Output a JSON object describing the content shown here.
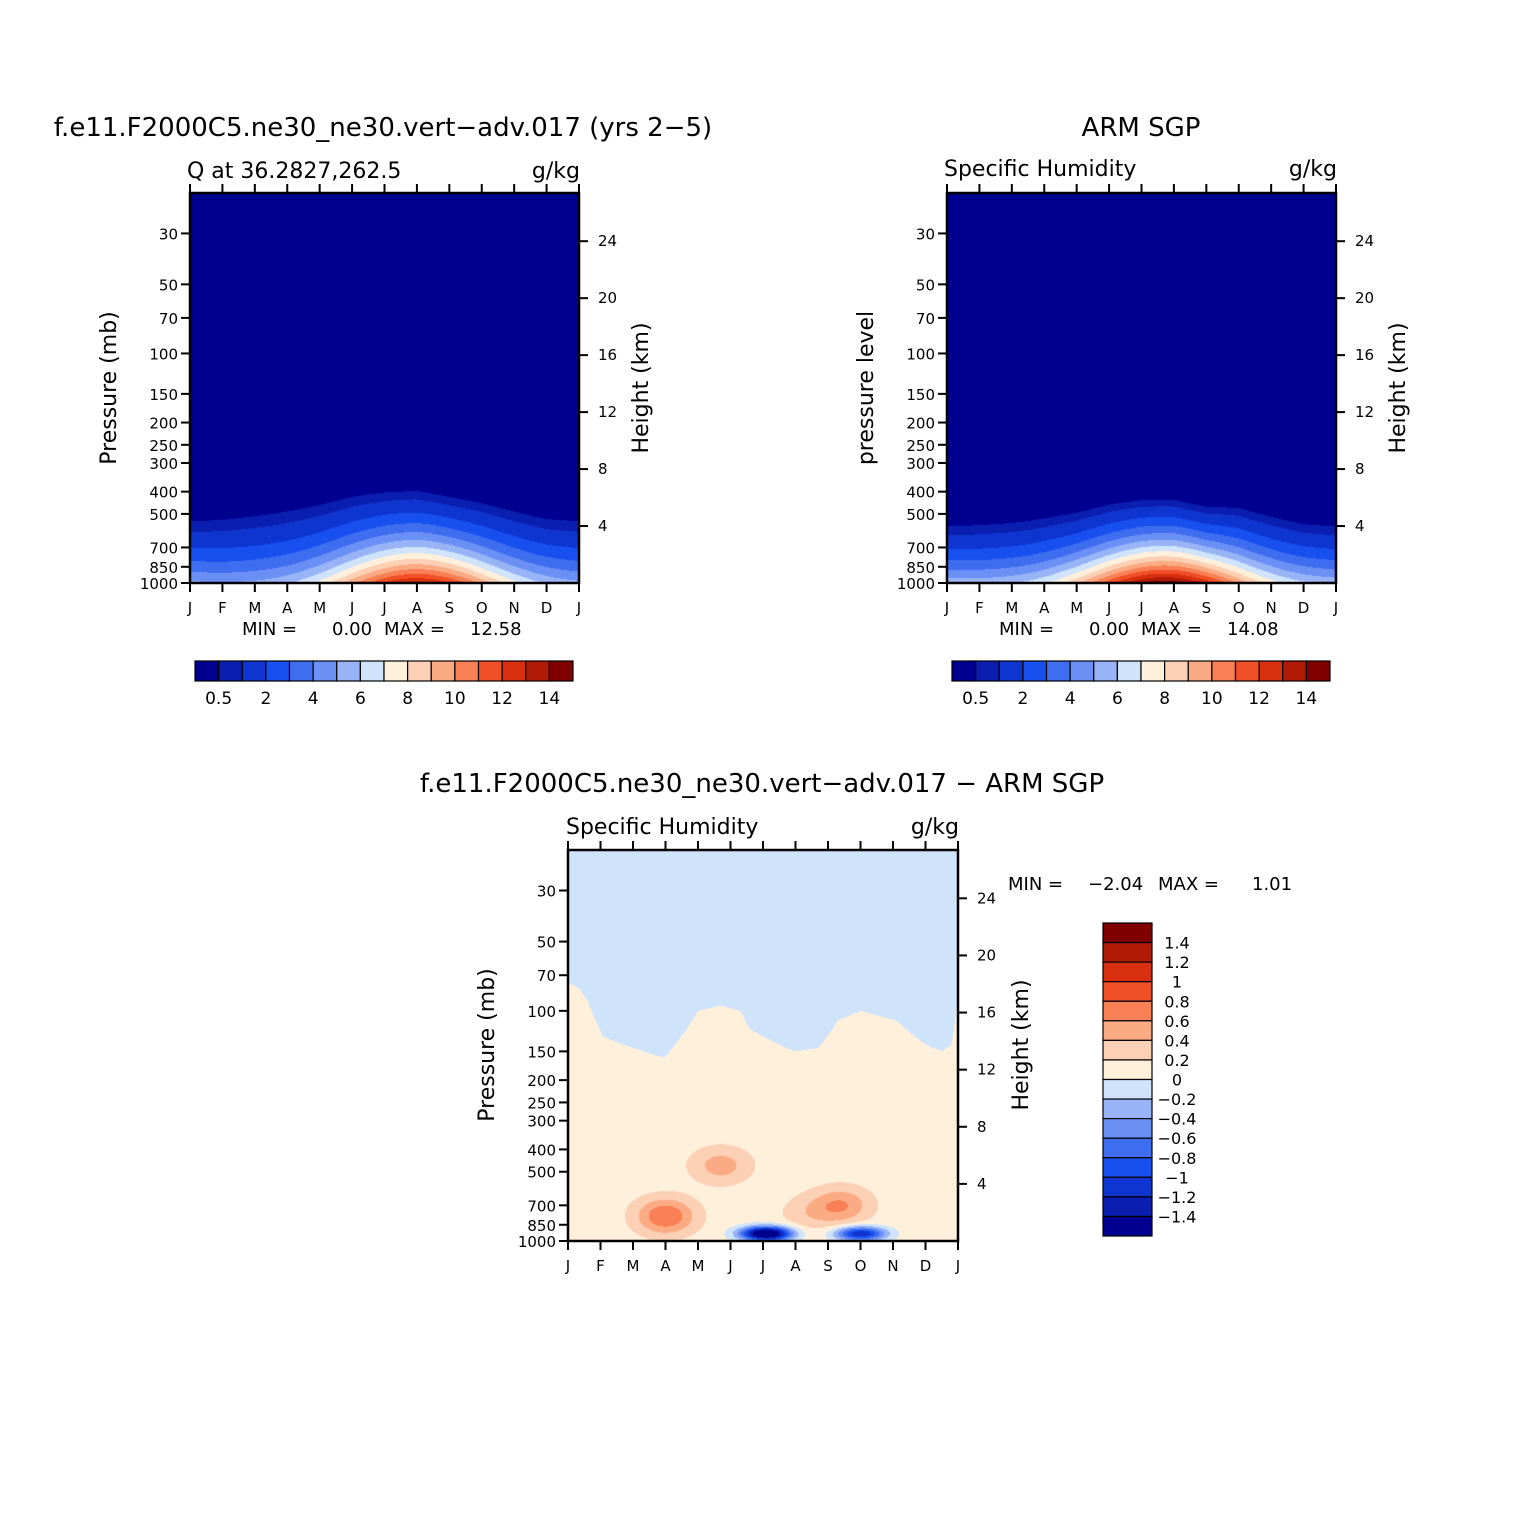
{
  "months": [
    "J",
    "F",
    "M",
    "A",
    "M",
    "J",
    "J",
    "A",
    "S",
    "O",
    "N",
    "D",
    "J"
  ],
  "chart_data": [
    {
      "type": "heatmap",
      "title": "f.e11.F2000C5.ne30_ne30.vert-adv.017 (yrs 2-5)",
      "subtitle": "Q at 36.2827,262.5",
      "units": "g/kg",
      "ylabel": "Pressure (mb)",
      "ylabel_right": "Height (km)",
      "yticks": [
        30,
        50,
        70,
        100,
        150,
        200,
        250,
        300,
        400,
        500,
        700,
        850,
        1000
      ],
      "yticks_right": [
        24,
        20,
        16,
        12,
        8,
        4
      ],
      "ylim": [
        1000,
        20
      ],
      "y_scale": "log",
      "min_label": "MIN =",
      "min_value": "0.00",
      "max_label": "MAX =",
      "max_value": "12.58",
      "levels": [
        0.5,
        1,
        2,
        3,
        4,
        5,
        6,
        7,
        8,
        9,
        10,
        11,
        12,
        13,
        14
      ],
      "colorbar_labels": [
        "0.5",
        "2",
        "4",
        "6",
        "8",
        "10",
        "12",
        "14"
      ],
      "colorbar_position": "bottom",
      "max_month": 7,
      "surface_max": 12.58,
      "bl_top_mb": [
        460,
        450,
        430,
        410,
        390,
        365,
        355,
        352,
        375,
        395,
        425,
        455,
        460
      ]
    },
    {
      "type": "heatmap",
      "title": "ARM SGP",
      "subtitle": "Specific Humidity",
      "units": "g/kg",
      "ylabel": "pressure level",
      "ylabel_right": "Height (km)",
      "yticks": [
        30,
        50,
        70,
        100,
        150,
        200,
        250,
        300,
        400,
        500,
        700,
        850,
        1000
      ],
      "yticks_right": [
        24,
        20,
        16,
        12,
        8,
        4
      ],
      "ylim": [
        1000,
        20
      ],
      "y_scale": "log",
      "min_label": "MIN =",
      "min_value": "0.00",
      "max_label": "MAX =",
      "max_value": "14.08",
      "levels": [
        0.5,
        1,
        2,
        3,
        4,
        5,
        6,
        7,
        8,
        9,
        10,
        11,
        12,
        13,
        14
      ],
      "colorbar_labels": [
        "0.5",
        "2",
        "4",
        "6",
        "8",
        "10",
        "12",
        "14"
      ],
      "colorbar_position": "bottom",
      "max_month": 6.7,
      "surface_max": 14.08,
      "bl_top_mb": [
        500,
        490,
        480,
        460,
        440,
        410,
        395,
        395,
        425,
        420,
        455,
        490,
        500
      ]
    },
    {
      "type": "heatmap",
      "title": "f.e11.F2000C5.ne30_ne30.vert-adv.017 - ARM SGP",
      "subtitle": "Specific Humidity",
      "units": "g/kg",
      "ylabel": "Pressure (mb)",
      "ylabel_right": "Height (km)",
      "yticks": [
        30,
        50,
        70,
        100,
        150,
        200,
        250,
        300,
        400,
        500,
        700,
        850,
        1000
      ],
      "yticks_right": [
        24,
        20,
        16,
        12,
        8,
        4
      ],
      "ylim": [
        1000,
        20
      ],
      "y_scale": "log",
      "min_label": "MIN =",
      "min_value": "-2.04",
      "max_label": "MAX =",
      "max_value": "1.01",
      "levels": [
        -1.4,
        -1.2,
        -1,
        -0.8,
        -0.6,
        -0.4,
        -0.2,
        0,
        0.2,
        0.4,
        0.6,
        0.8,
        1,
        1.2,
        1.4
      ],
      "colorbar_labels": [
        "1.4",
        "1.2",
        "1",
        "0.8",
        "0.6",
        "0.4",
        "0.2",
        "0",
        "-0.2",
        "-0.4",
        "-0.6",
        "-0.8",
        "-1",
        "-1.2",
        "-1.4"
      ],
      "colorbar_position": "right",
      "zero_line_x": [
        0,
        0.35,
        0.6,
        1.1,
        2.0,
        2.95,
        4.0,
        4.7,
        5.3,
        5.6,
        6.7,
        7.0,
        7.7,
        8.3,
        9.0,
        10.1,
        11.0,
        11.5,
        11.8,
        12.0
      ],
      "zero_line_mb": [
        75,
        80,
        90,
        130,
        145,
        160,
        100,
        95,
        100,
        120,
        145,
        150,
        145,
        110,
        100,
        110,
        140,
        150,
        140,
        85
      ],
      "positive_regions": [
        {
          "month": 3,
          "mb": 780,
          "value": 0.7
        },
        {
          "month": 8.4,
          "mb": 700,
          "value": 0.5
        },
        {
          "month": 7.4,
          "mb": 760,
          "value": 0.2
        },
        {
          "month": 4.7,
          "mb": 470,
          "value": 0.4
        }
      ],
      "negative_regions": [
        {
          "month": 6.1,
          "mb": 930,
          "value": -2.04
        },
        {
          "month": 9.0,
          "mb": 930,
          "value": -1.3
        }
      ]
    }
  ]
}
